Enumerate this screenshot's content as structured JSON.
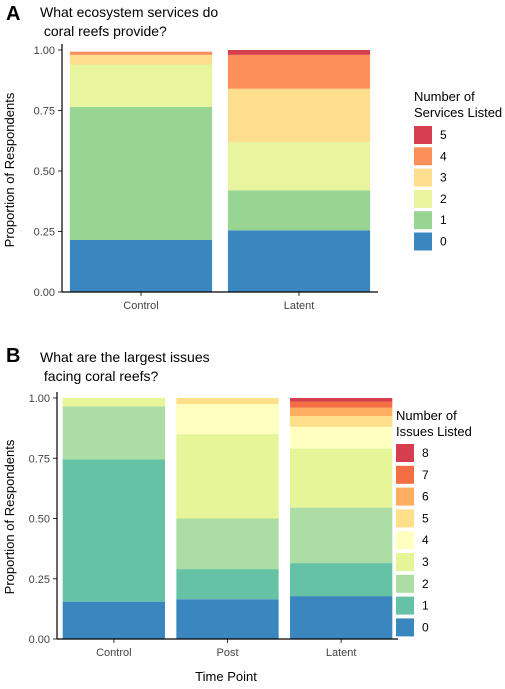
{
  "chart_data": [
    {
      "type": "bar",
      "stacked": true,
      "panel_label": "A",
      "title_lines": [
        "What ecosystem services do",
        " coral reefs provide?"
      ],
      "xlabel": "",
      "ylabel": "Proportion of Respondents",
      "ylim": [
        0,
        1
      ],
      "yticks": [
        "0.00",
        "0.25",
        "0.50",
        "0.75",
        "1.00"
      ],
      "categories": [
        "Control",
        "Latent"
      ],
      "legend_title_lines": [
        "Number of",
        "Services Listed"
      ],
      "legend_placement": "right",
      "grid": false,
      "series": [
        {
          "name": "0",
          "color": "#3a87c0",
          "values": [
            0.215,
            0.255
          ]
        },
        {
          "name": "1",
          "color": "#98d593",
          "values": [
            0.55,
            0.165
          ]
        },
        {
          "name": "2",
          "color": "#e8f49e",
          "values": [
            0.175,
            0.2
          ]
        },
        {
          "name": "3",
          "color": "#fdde8e",
          "values": [
            0.04,
            0.22
          ]
        },
        {
          "name": "4",
          "color": "#fd9059",
          "values": [
            0.013,
            0.14
          ]
        },
        {
          "name": "5",
          "color": "#d63f4f",
          "values": [
            0.0,
            0.02
          ]
        }
      ]
    },
    {
      "type": "bar",
      "stacked": true,
      "panel_label": "B",
      "title_lines": [
        "What are the largest issues",
        " facing coral reefs?"
      ],
      "xlabel": "Time Point",
      "ylabel": "Proportion of Respondents",
      "ylim": [
        0,
        1
      ],
      "yticks": [
        "0.00",
        "0.25",
        "0.50",
        "0.75",
        "1.00"
      ],
      "categories": [
        "Control",
        "Post",
        "Latent"
      ],
      "legend_title_lines": [
        "Number of",
        "Issues Listed"
      ],
      "legend_placement": "right",
      "grid": false,
      "series": [
        {
          "name": "0",
          "color": "#3a87c0",
          "values": [
            0.155,
            0.165,
            0.178
          ]
        },
        {
          "name": "1",
          "color": "#66c2a5",
          "values": [
            0.59,
            0.125,
            0.137
          ]
        },
        {
          "name": "2",
          "color": "#abdda4",
          "values": [
            0.22,
            0.21,
            0.23
          ]
        },
        {
          "name": "3",
          "color": "#e6f598",
          "values": [
            0.035,
            0.35,
            0.245
          ]
        },
        {
          "name": "4",
          "color": "#ffffbf",
          "values": [
            0.0,
            0.125,
            0.09
          ]
        },
        {
          "name": "5",
          "color": "#fee08b",
          "values": [
            0.0,
            0.025,
            0.045
          ]
        },
        {
          "name": "6",
          "color": "#fdae61",
          "values": [
            0.0,
            0.0,
            0.035
          ]
        },
        {
          "name": "7",
          "color": "#f46d43",
          "values": [
            0.0,
            0.0,
            0.025
          ]
        },
        {
          "name": "8",
          "color": "#d53e4f",
          "values": [
            0.0,
            0.0,
            0.015
          ]
        }
      ]
    }
  ]
}
